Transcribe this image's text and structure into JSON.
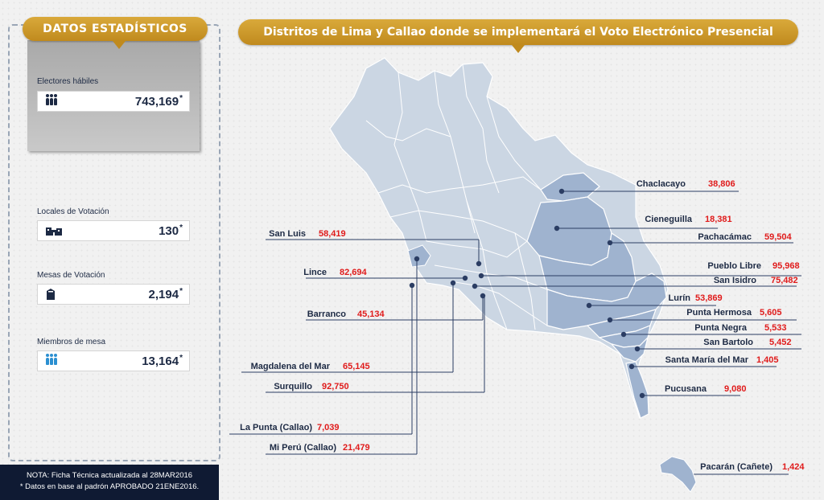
{
  "left_panel": {
    "title": "DATOS ESTADÍSTICOS",
    "stats": [
      {
        "label": "Electores hábiles",
        "value": "743,169",
        "star": "*",
        "icon": "people-icon"
      },
      {
        "label": "Locales de Votación",
        "value": "130",
        "star": "*",
        "icon": "building-icon"
      },
      {
        "label": "Mesas de Votación",
        "value": "2,194",
        "star": "*",
        "icon": "ballot-box-icon"
      },
      {
        "label": "Miembros de mesa",
        "value": "13,164",
        "star": "*",
        "icon": "people-icon"
      }
    ],
    "note_line1": "NOTA: Ficha Técnica actualizada al 28MAR2016",
    "note_line2": "* Datos en base al padrón APROBADO 21ENE2016."
  },
  "map": {
    "title": "Distritos de Lima y Callao donde se implementará el Voto Electrónico Presencial",
    "colors": {
      "base": "#cbd6e3",
      "highlight": "#9fb3cf",
      "border": "#ffffff",
      "leader": "#2b3d63",
      "number": "#e01b1b"
    },
    "districts": [
      {
        "name": "Chaclacayo",
        "value": "38,806"
      },
      {
        "name": "Cieneguilla",
        "value": "18,381"
      },
      {
        "name": "Pachacámac",
        "value": "59,504"
      },
      {
        "name": "San Luis",
        "value": "58,419"
      },
      {
        "name": "Pueblo Libre",
        "value": "95,968"
      },
      {
        "name": "San Isidro",
        "value": "75,482"
      },
      {
        "name": "Lince",
        "value": "82,694"
      },
      {
        "name": "Lurín",
        "value": "53,869"
      },
      {
        "name": "Punta Hermosa",
        "value": "5,605"
      },
      {
        "name": "Barranco",
        "value": "45,134"
      },
      {
        "name": "Punta Negra",
        "value": "5,533"
      },
      {
        "name": "San Bartolo",
        "value": "5,452"
      },
      {
        "name": "Santa María del Mar",
        "value": "1,405"
      },
      {
        "name": "Magdalena del Mar",
        "value": "65,145"
      },
      {
        "name": "Surquillo",
        "value": "92,750"
      },
      {
        "name": "Pucusana",
        "value": "9,080"
      },
      {
        "name": "La Punta (Callao)",
        "value": "7,039"
      },
      {
        "name": "Mi Perú (Callao)",
        "value": "21,479"
      },
      {
        "name": "Pacarán (Cañete)",
        "value": "1,424"
      }
    ]
  }
}
